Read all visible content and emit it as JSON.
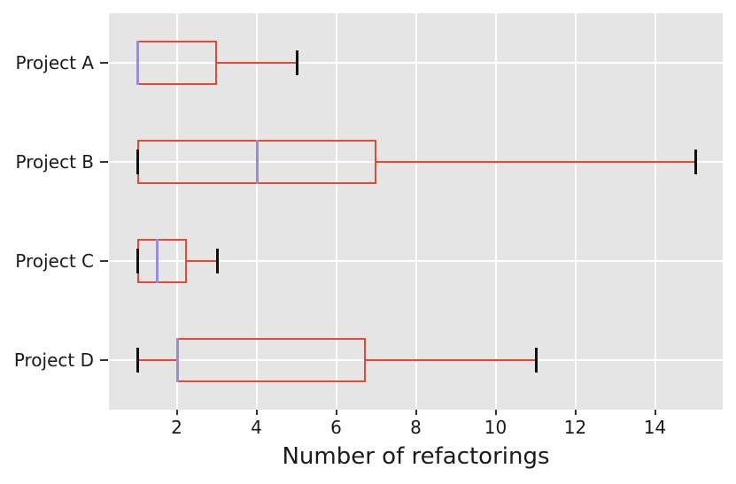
{
  "chart_data": {
    "type": "boxplot",
    "orientation": "horizontal",
    "title": "",
    "xlabel": "Number of refactorings",
    "ylabel": "",
    "xlim": [
      0.3,
      15.7
    ],
    "xticks": [
      2,
      4,
      6,
      8,
      10,
      12,
      14
    ],
    "grid": true,
    "legend": "none",
    "categories": [
      "Project A",
      "Project B",
      "Project C",
      "Project D"
    ],
    "boxes": [
      {
        "label": "Project A",
        "whislo": 1,
        "q1": 1,
        "med": 1,
        "q3": 3,
        "whishi": 5
      },
      {
        "label": "Project B",
        "whislo": 1,
        "q1": 1,
        "med": 4,
        "q3": 7,
        "whishi": 15
      },
      {
        "label": "Project C",
        "whislo": 1,
        "q1": 1,
        "med": 1.5,
        "q3": 2.25,
        "whishi": 3
      },
      {
        "label": "Project D",
        "whislo": 1,
        "q1": 2,
        "med": 2,
        "q3": 6.75,
        "whishi": 11
      }
    ],
    "colors": {
      "box_edge": "#E24A33",
      "whisker": "#E24A33",
      "median": "#988ED5",
      "cap": "#111111",
      "plot_background": "#E5E5E5",
      "gridline": "#FFFFFF",
      "tick_mark": "#333333",
      "text": "#1a1a1a",
      "figure_background": "#FFFFFF"
    }
  }
}
